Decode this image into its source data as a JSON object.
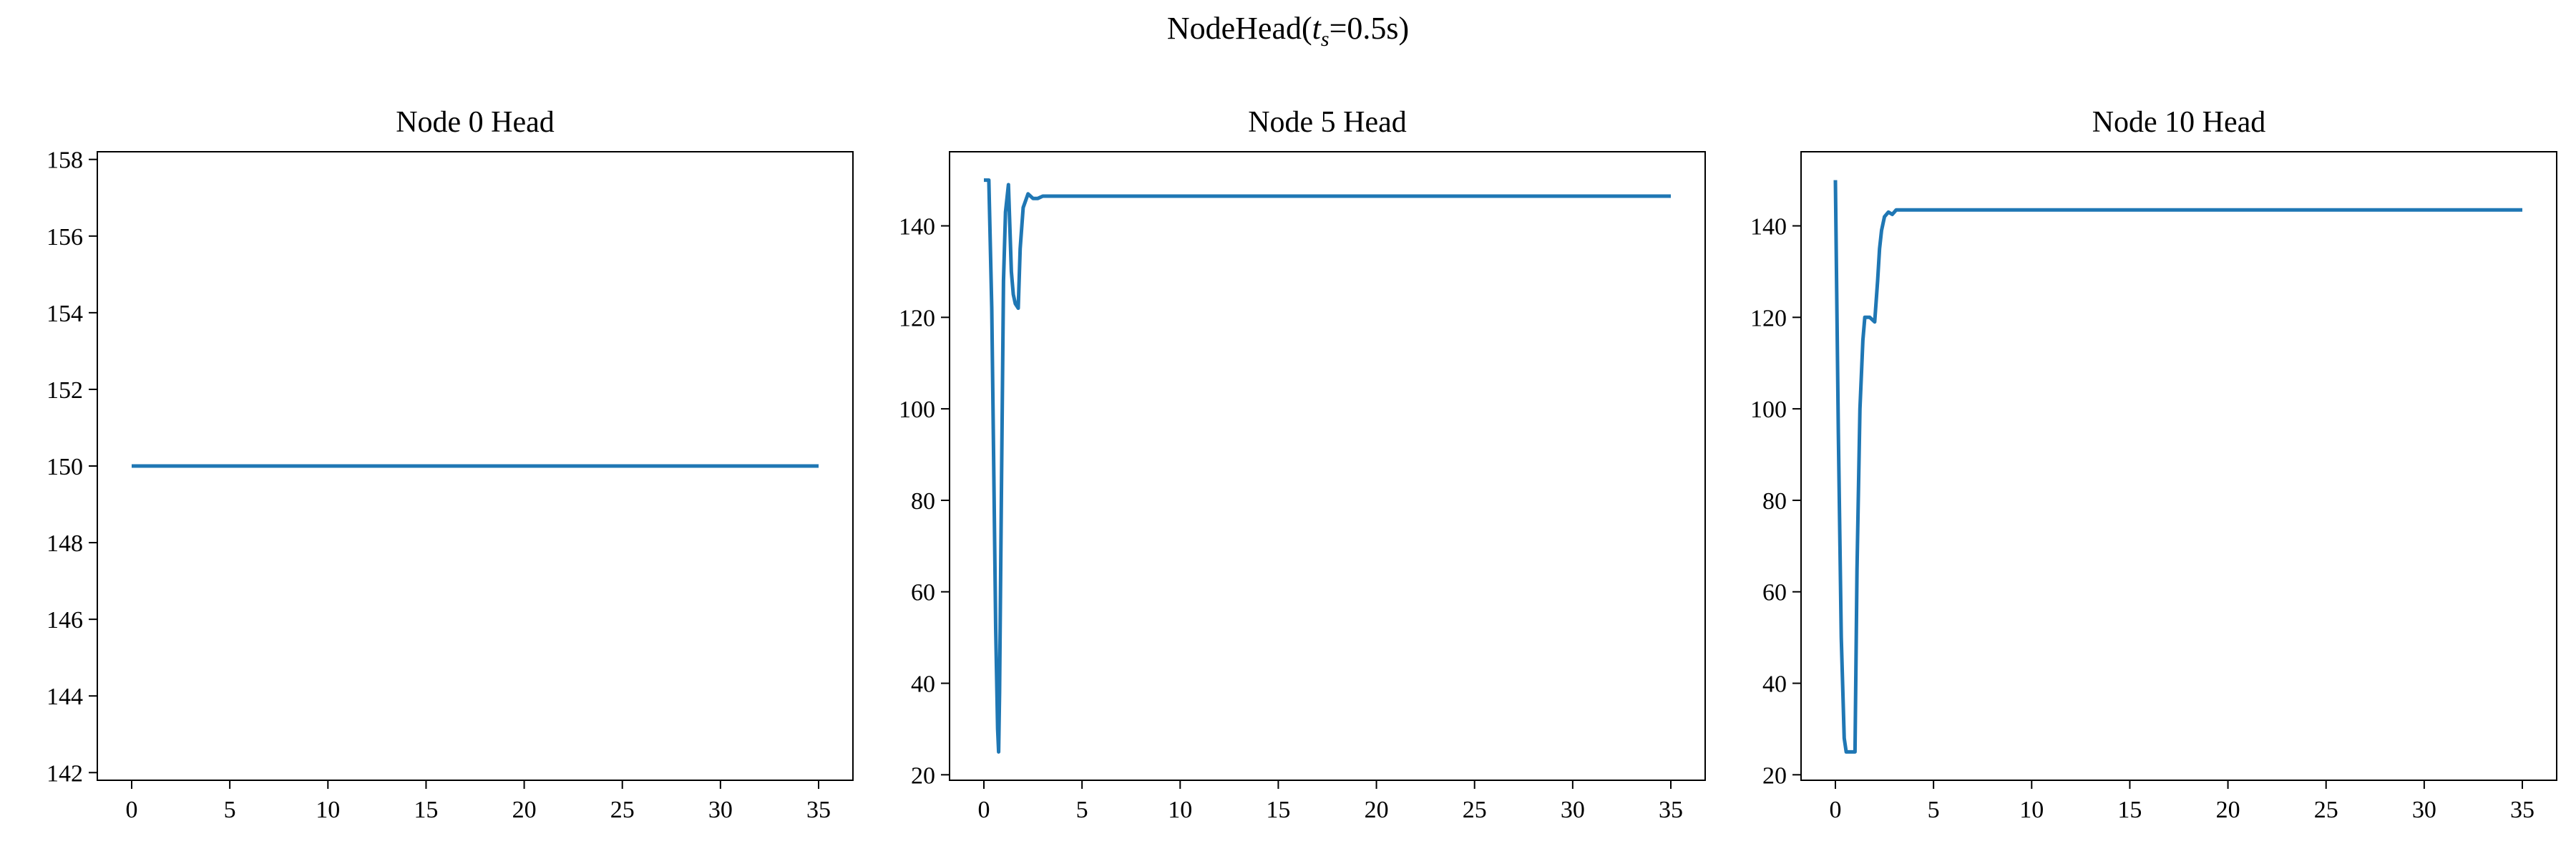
{
  "figure": {
    "title_prefix": "NodeHead(",
    "title_var": "t",
    "title_sub": "s",
    "title_suffix": "=0.5s)"
  },
  "colors": {
    "line": "#1f77b4"
  },
  "chart_data": [
    {
      "type": "line",
      "title": "Node 0 Head",
      "xlabel": "",
      "ylabel": "",
      "xlim": [
        -1.75,
        36.75
      ],
      "ylim": [
        141.8,
        158.2
      ],
      "xticks": [
        0,
        5,
        10,
        15,
        20,
        25,
        30,
        35
      ],
      "yticks": [
        142,
        144,
        146,
        148,
        150,
        152,
        154,
        156,
        158
      ],
      "grid": false,
      "series": [
        {
          "x": [
            0,
            35
          ],
          "y": [
            150,
            150
          ]
        }
      ]
    },
    {
      "type": "line",
      "title": "Node 5 Head",
      "xlabel": "",
      "ylabel": "",
      "xlim": [
        -1.75,
        36.75
      ],
      "ylim": [
        18.8,
        156.2
      ],
      "xticks": [
        0,
        5,
        10,
        15,
        20,
        25,
        30,
        35
      ],
      "yticks": [
        20,
        40,
        60,
        80,
        100,
        120,
        140
      ],
      "grid": false,
      "series": [
        {
          "x": [
            0,
            0.25,
            0.4,
            0.5,
            0.6,
            0.7,
            0.75,
            0.8,
            0.9,
            1.0,
            1.1,
            1.25,
            1.4,
            1.5,
            1.6,
            1.75,
            1.85,
            2.0,
            2.25,
            2.5,
            2.75,
            3.0,
            3.5,
            35
          ],
          "y": [
            150,
            150,
            122,
            88,
            52,
            30,
            25,
            38,
            85,
            128,
            143,
            149,
            130,
            125,
            123,
            122,
            135,
            144,
            147,
            146,
            146,
            146.5,
            146.5,
            146.5
          ]
        }
      ]
    },
    {
      "type": "line",
      "title": "Node 10 Head",
      "xlabel": "",
      "ylabel": "",
      "xlim": [
        -1.75,
        36.75
      ],
      "ylim": [
        18.8,
        156.2
      ],
      "xticks": [
        0,
        5,
        10,
        15,
        20,
        25,
        30,
        35
      ],
      "yticks": [
        20,
        40,
        60,
        80,
        100,
        120,
        140
      ],
      "grid": false,
      "series": [
        {
          "x": [
            0,
            0.15,
            0.3,
            0.45,
            0.55,
            0.7,
            1.0,
            1.1,
            1.25,
            1.4,
            1.5,
            1.75,
            2.0,
            2.15,
            2.25,
            2.35,
            2.5,
            2.7,
            2.9,
            3.1,
            3.3,
            3.6,
            4.0,
            35
          ],
          "y": [
            150,
            95,
            50,
            28,
            25,
            25,
            25,
            65,
            100,
            115,
            120,
            120,
            119,
            128,
            135,
            139,
            142,
            143,
            142.5,
            143.5,
            143.5,
            143.5,
            143.5,
            143.5
          ]
        }
      ]
    }
  ]
}
